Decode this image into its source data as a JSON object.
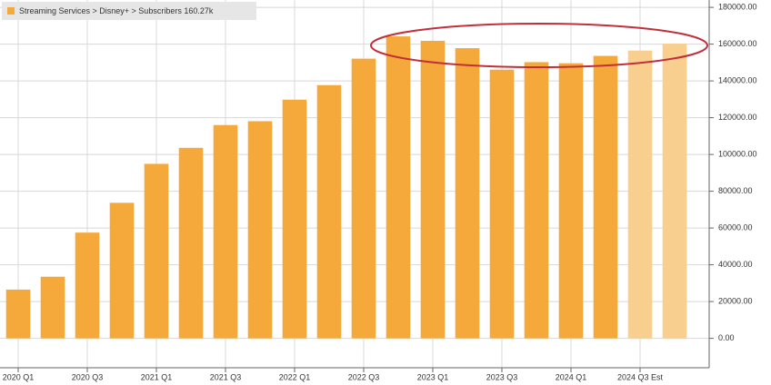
{
  "chart_data": {
    "type": "bar",
    "legend": "Streaming Services > Disney+ > Subscribers  160.27k",
    "categories": [
      "2020 Q1",
      null,
      "2020 Q3",
      null,
      "2021 Q1",
      null,
      "2021 Q3",
      null,
      "2022 Q1",
      null,
      "2022 Q3",
      null,
      "2023 Q1",
      null,
      "2023 Q3",
      null,
      "2024 Q1",
      null,
      "2024 Q3 Est",
      null
    ],
    "values": [
      26500,
      33500,
      57500,
      73700,
      94900,
      103600,
      116000,
      118100,
      129800,
      137700,
      152100,
      164200,
      161800,
      157800,
      146100,
      150200,
      149600,
      153600,
      156500,
      160270
    ],
    "colors": [
      "#f5a93a",
      "#f5a93a",
      "#f5a93a",
      "#f5a93a",
      "#f5a93a",
      "#f5a93a",
      "#f5a93a",
      "#f5a93a",
      "#f5a93a",
      "#f5a93a",
      "#f5a93a",
      "#f5a93a",
      "#f5a93a",
      "#f5a93a",
      "#f5a93a",
      "#f5a93a",
      "#f5a93a",
      "#f5a93a",
      "#f9cf90",
      "#f9cf90"
    ],
    "ylim": [
      -16000,
      184000
    ],
    "yticks": [
      {
        "value": 0,
        "label": "0.00"
      },
      {
        "value": 20000,
        "label": "20000.00"
      },
      {
        "value": 40000,
        "label": "40000.00"
      },
      {
        "value": 60000,
        "label": "60000.00"
      },
      {
        "value": 80000,
        "label": "80000.00"
      },
      {
        "value": 100000,
        "label": "100000.00"
      },
      {
        "value": 120000,
        "label": "120000.00"
      },
      {
        "value": 140000,
        "label": "140000.00"
      },
      {
        "value": 160000,
        "label": "160000.00"
      },
      {
        "value": 180000,
        "label": "180000.00"
      }
    ],
    "grid": true
  }
}
